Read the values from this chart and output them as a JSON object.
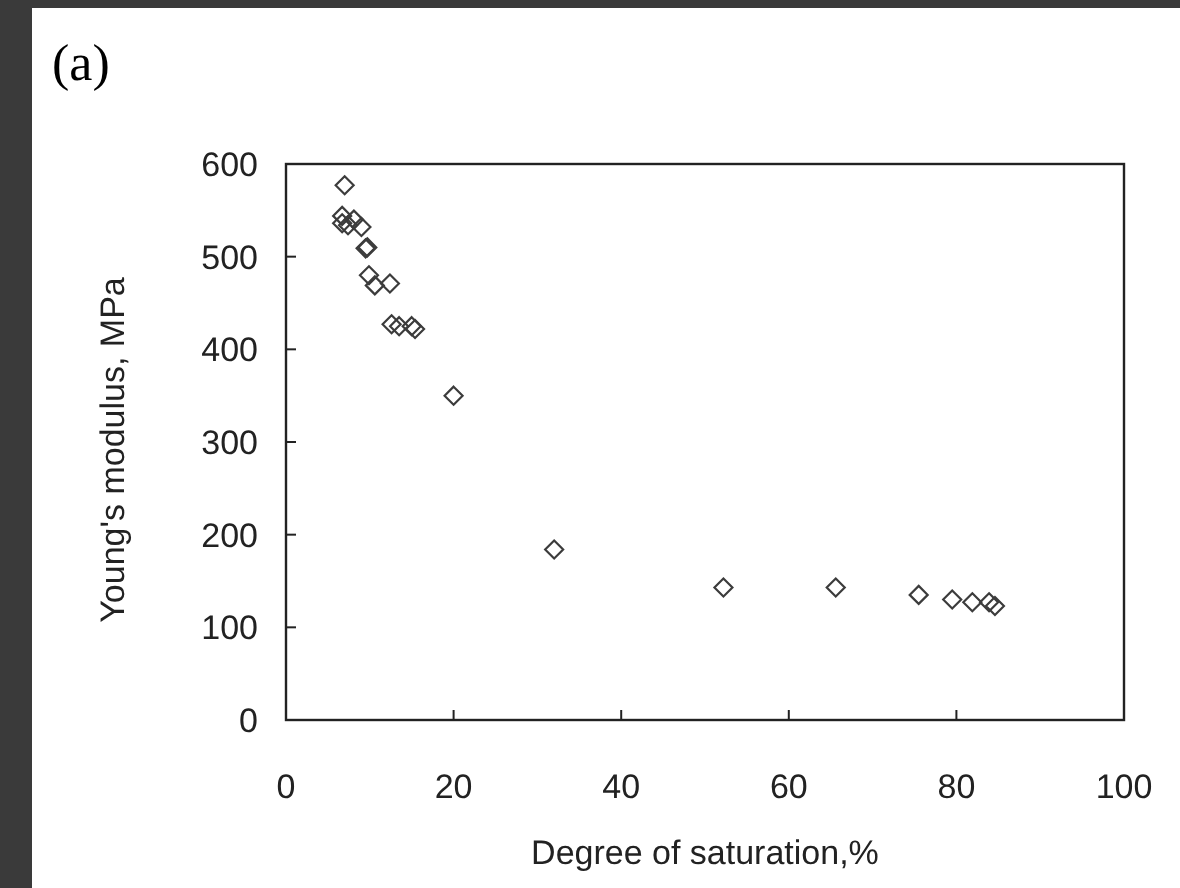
{
  "chart_data": {
    "type": "scatter",
    "title": "(a)",
    "xlabel": "Degree of saturation,%",
    "ylabel": "Young's modulus, MPa",
    "x": [
      7.0,
      6.7,
      6.7,
      7.4,
      8.1,
      9.0,
      9.5,
      9.7,
      9.9,
      10.6,
      12.4,
      12.6,
      13.5,
      15.0,
      15.4,
      20.0,
      32.0,
      52.2,
      65.6,
      75.5,
      79.5,
      81.9,
      83.9,
      84.6
    ],
    "series": [
      {
        "color": "#3c3c3c",
        "values": [
          577,
          544,
          536,
          534,
          540,
          532,
          509,
          510,
          480,
          469,
          471,
          427,
          425,
          425,
          422,
          350,
          184,
          143,
          143,
          135,
          130,
          127,
          127,
          123
        ]
      }
    ],
    "xlim": [
      0,
      100
    ],
    "xticks": [
      0,
      20,
      40,
      60,
      80,
      100
    ],
    "ylim": [
      0,
      600
    ],
    "yticks": [
      0,
      100,
      200,
      300,
      400,
      500,
      600
    ],
    "marker": "diamond",
    "grid": false
  }
}
